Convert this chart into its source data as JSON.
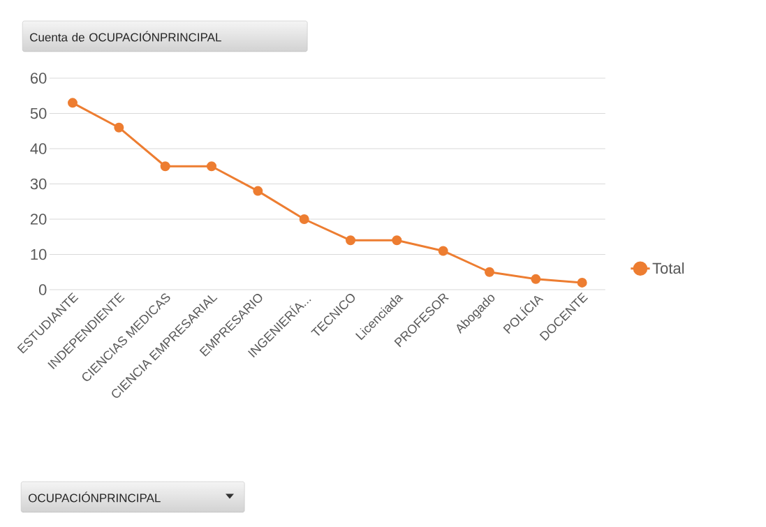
{
  "chart_data": {
    "type": "line",
    "title": "Cuenta de OCUPACIÓNPRINCIPAL",
    "annotations": [
      "OCUPACIÓNPRINCIPAL"
    ],
    "categories": [
      "ESTUDIANTE",
      "INDEPENDIENTE",
      "CIENCIAS MEDICAS",
      "CIENCIA EMPRESARIAL",
      "EMPRESARIO",
      "INGENIERÍA...",
      "TECNICO",
      "Licenciada",
      "PROFESOR",
      "Abogado",
      "POLÍCIA",
      "DOCENTE"
    ],
    "series": [
      {
        "name": "Total",
        "color": "#ed7d31",
        "values": [
          53,
          46,
          35,
          35,
          28,
          20,
          14,
          14,
          11,
          5,
          3,
          2
        ]
      }
    ],
    "ylim": [
      0,
      60
    ],
    "yticks": [
      0,
      10,
      20,
      30,
      40,
      50,
      60
    ],
    "grid": "y",
    "legend": "right",
    "marker": "circle",
    "line_style": "solid"
  }
}
